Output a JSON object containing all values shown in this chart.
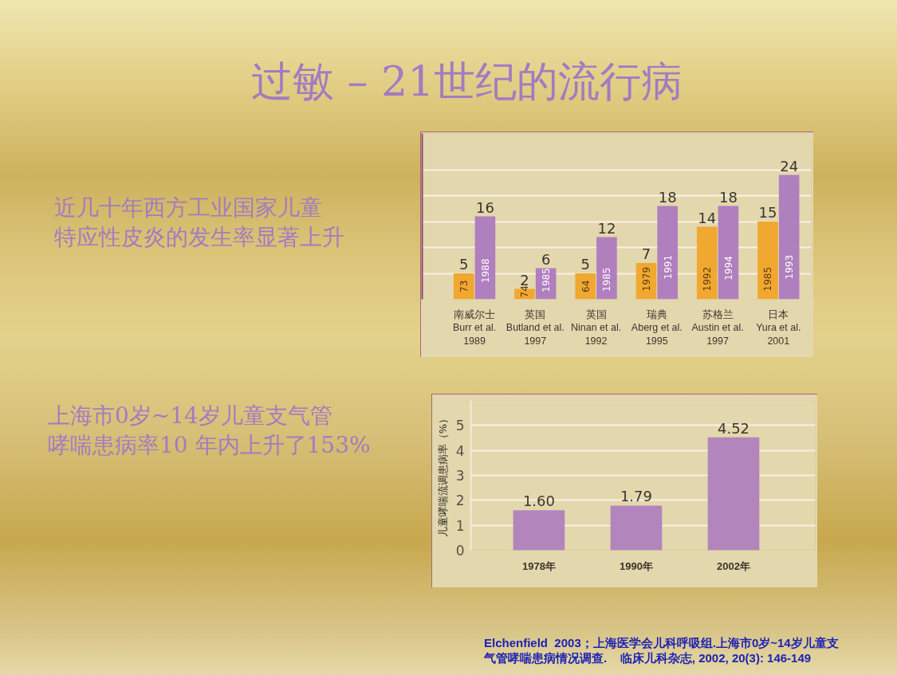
{
  "chart_data": [
    {
      "type": "bar",
      "title": "过敏 – 21世纪的流行病",
      "subtitle": "近几十年西方工业国家儿童特应性皮炎的发生率显著上升",
      "categories": [
        "南威尔士\nBurr et al.\n1989",
        "英国\nButland et al.\n1997",
        "英国\nNinan et al.\n1992",
        "瑞典\nAberg et al.\n1995",
        "苏格兰\nAustin et al.\n1997",
        "日本\nYura et al.\n2001"
      ],
      "series": [
        {
          "color": "#f0a830",
          "values": [
            5,
            2,
            5,
            7,
            14,
            15
          ]
        },
        {
          "color": "#b07fbe",
          "values": [
            16,
            6,
            12,
            18,
            18,
            24
          ]
        }
      ],
      "ylim": [
        0,
        32
      ],
      "yticks": [
        {
          "value": 0,
          "label": null
        },
        {
          "value": 5,
          "label": null
        },
        {
          "value": 10,
          "label": null
        },
        {
          "value": 15,
          "label": null
        },
        {
          "value": 20,
          "label": null
        },
        {
          "value": 25,
          "label": null
        }
      ],
      "tick_labels": "x",
      "grid": "y",
      "data_labels": true,
      "annotations": [
        {
          "text": "73",
          "x": "南威尔士\nBurr et al.\n1989",
          "y": 2.5
        },
        {
          "text": "1988",
          "x": "南威尔士\nBurr et al.\n1989",
          "y": 5.5
        },
        {
          "text": "74",
          "x": "英国\nButland et al.\n1997",
          "y": 1.5
        },
        {
          "text": "1985",
          "x": "英国\nButland et al.\n1997",
          "y": 3.7
        },
        {
          "text": "64",
          "x": "英国\nNinan et al.\n1992",
          "y": 2.5
        },
        {
          "text": "1985",
          "x": "英国\nNinan et al.\n1992",
          "y": 3.8
        },
        {
          "text": "1979",
          "x": "瑞典\nAberg et al.\n1995",
          "y": 3.9
        },
        {
          "text": "1991",
          "x": "瑞典\nAberg et al.\n1995",
          "y": 6.2
        },
        {
          "text": "1992",
          "x": "苏格兰\nAustin et al.\n1997",
          "y": 3.9
        },
        {
          "text": "1994",
          "x": "苏格兰\nAustin et al.\n1997",
          "y": 6
        },
        {
          "text": "1985",
          "x": "日本\nYura et al.\n2001",
          "y": 3.9
        },
        {
          "text": "1993",
          "x": "日本\nYura et al.\n2001",
          "y": 6.2
        }
      ]
    },
    {
      "type": "bar",
      "title": "上海市0岁~14岁儿童支气管哮喘患病率10 年内上升了153%",
      "categories": [
        "1978年",
        "1990年",
        "2002年"
      ],
      "values": [
        1.6,
        1.79,
        4.52
      ],
      "value_labels": [
        "1.60",
        "1.79",
        "4.52"
      ],
      "color": "#b286bd",
      "ylabel": "儿童哮喘流调患病率（%）",
      "ylim": [
        0,
        6
      ],
      "yticks": [
        0,
        1,
        2,
        3,
        4,
        5
      ],
      "grid": "y",
      "annotations": [
        "Elchenfield  2003；上海医学会儿科呼吸组.上海市0岁~14岁儿童支气管哮喘患病情况调查.    临床儿科杂志, 2002, 20(3): 146-149"
      ]
    }
  ]
}
